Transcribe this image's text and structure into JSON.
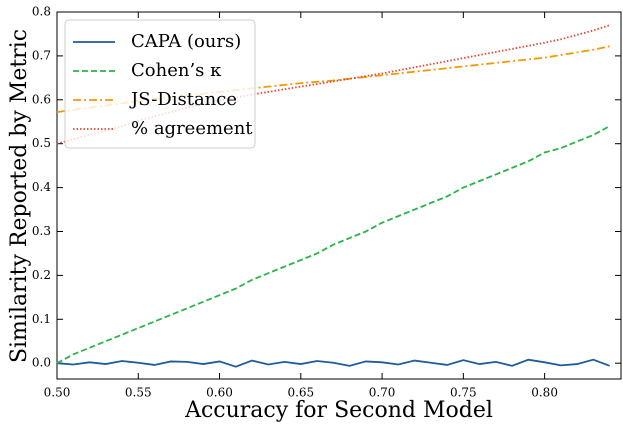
{
  "chart_data": {
    "type": "line",
    "xlabel": "Accuracy for Second Model",
    "ylabel": "Similarity Reported by Metric",
    "x": [
      0.5,
      0.51,
      0.52,
      0.53,
      0.54,
      0.55,
      0.56,
      0.57,
      0.58,
      0.59,
      0.6,
      0.61,
      0.62,
      0.63,
      0.64,
      0.65,
      0.66,
      0.67,
      0.68,
      0.69,
      0.7,
      0.71,
      0.72,
      0.73,
      0.74,
      0.75,
      0.76,
      0.77,
      0.78,
      0.79,
      0.8,
      0.81,
      0.82,
      0.83,
      0.84
    ],
    "series": [
      {
        "name": "CAPA (ours)",
        "color": "#1f5c99",
        "linestyle": "solid",
        "values": [
          0,
          -0.003,
          0.002,
          -0.002,
          0.005,
          0.001,
          -0.004,
          0.004,
          0.003,
          -0.002,
          0.004,
          -0.008,
          0.006,
          -0.003,
          0.003,
          -0.002,
          0.005,
          0.001,
          -0.006,
          0.004,
          0.002,
          -0.003,
          0.006,
          0.001,
          -0.004,
          0.007,
          -0.002,
          0.003,
          -0.006,
          0.008,
          0.002,
          -0.005,
          -0.002,
          0.008,
          -0.006
        ]
      },
      {
        "name": "Cohen’s κ",
        "color": "#2db34a",
        "linestyle": "dashed",
        "values": [
          0,
          0.02,
          0.035,
          0.05,
          0.065,
          0.08,
          0.095,
          0.11,
          0.125,
          0.14,
          0.155,
          0.17,
          0.19,
          0.205,
          0.22,
          0.235,
          0.25,
          0.27,
          0.285,
          0.3,
          0.32,
          0.335,
          0.35,
          0.365,
          0.38,
          0.4,
          0.415,
          0.43,
          0.445,
          0.46,
          0.48,
          0.49,
          0.505,
          0.52,
          0.54
        ]
      },
      {
        "name": "JS-Distance",
        "color": "#f29a05",
        "linestyle": "dashdot",
        "values": [
          0.572,
          0.577,
          0.582,
          0.587,
          0.592,
          0.597,
          0.602,
          0.606,
          0.61,
          0.614,
          0.618,
          0.622,
          0.626,
          0.63,
          0.634,
          0.638,
          0.641,
          0.644,
          0.648,
          0.652,
          0.656,
          0.66,
          0.664,
          0.668,
          0.672,
          0.676,
          0.68,
          0.684,
          0.688,
          0.692,
          0.696,
          0.702,
          0.708,
          0.714,
          0.722
        ]
      },
      {
        "name": "% agreement",
        "color": "#e8452c",
        "linestyle": "dotted",
        "values": [
          0.5,
          0.51,
          0.52,
          0.53,
          0.54,
          0.552,
          0.562,
          0.572,
          0.582,
          0.59,
          0.598,
          0.605,
          0.612,
          0.618,
          0.624,
          0.63,
          0.636,
          0.642,
          0.648,
          0.654,
          0.66,
          0.667,
          0.674,
          0.681,
          0.688,
          0.695,
          0.702,
          0.709,
          0.716,
          0.723,
          0.73,
          0.738,
          0.748,
          0.758,
          0.77
        ]
      }
    ],
    "xlim": [
      0.5,
      0.847
    ],
    "ylim": [
      -0.036,
      0.8
    ],
    "xticks": [
      {
        "value": 0.5,
        "label": "0.50"
      },
      {
        "value": 0.55,
        "label": "0.55"
      },
      {
        "value": 0.6,
        "label": "0.60"
      },
      {
        "value": 0.65,
        "label": "0.65"
      },
      {
        "value": 0.7,
        "label": "0.70"
      },
      {
        "value": 0.75,
        "label": "0.75"
      },
      {
        "value": 0.8,
        "label": "0.80"
      }
    ],
    "yticks": [
      {
        "value": 0,
        "label": "0.0"
      },
      0.1,
      0.2,
      0.3,
      0.4,
      0.5,
      0.6,
      0.7,
      0.8
    ],
    "legend": "upper-left",
    "grid": false
  }
}
